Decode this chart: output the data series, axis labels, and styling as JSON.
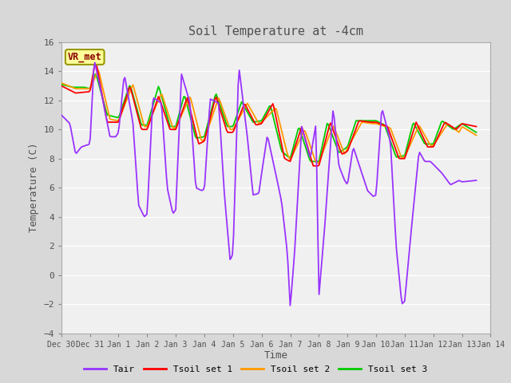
{
  "title": "Soil Temperature at -4cm",
  "xlabel": "Time",
  "ylabel": "Temperature (C)",
  "ylim": [
    -4,
    16
  ],
  "yticks": [
    -4,
    -2,
    0,
    2,
    4,
    6,
    8,
    10,
    12,
    14,
    16
  ],
  "xtick_labels": [
    "Dec 30",
    "Dec 31",
    "Jan 1",
    "Jan 2",
    "Jan 3",
    "Jan 4",
    "Jan 5",
    "Jan 6",
    "Jan 7",
    "Jan 8",
    "Jan 9",
    "Jan 10",
    "Jan 11",
    "Jan 12",
    "Jan 13",
    "Jan 14"
  ],
  "annotation_label": "VR_met",
  "annotation_color": "#8B0000",
  "annotation_bg": "#FFFF99",
  "annotation_border": "#999900",
  "line_colors": {
    "Tair": "#9933FF",
    "Tsoil set 1": "#FF0000",
    "Tsoil set 2": "#FF9900",
    "Tsoil set 3": "#00CC00"
  },
  "outer_bg": "#D8D8D8",
  "plot_bg": "#F0F0F0",
  "grid_color": "#FFFFFF",
  "title_color": "#505050",
  "axis_label_color": "#505050",
  "tick_label_color": "#505050",
  "tair_x": [
    0.0,
    0.3,
    0.5,
    0.7,
    1.0,
    1.15,
    1.4,
    1.7,
    1.9,
    2.0,
    2.2,
    2.5,
    2.7,
    2.9,
    3.0,
    3.2,
    3.5,
    3.7,
    3.9,
    4.0,
    4.2,
    4.5,
    4.7,
    4.9,
    5.0,
    5.2,
    5.5,
    5.7,
    5.9,
    6.0,
    6.2,
    6.5,
    6.7,
    6.9,
    7.0,
    7.2,
    7.5,
    7.7,
    7.9,
    8.0,
    8.15,
    8.4,
    8.7,
    8.9,
    9.0,
    9.2,
    9.5,
    9.7,
    9.9,
    10.0,
    10.2,
    10.5,
    10.7,
    10.9,
    11.0,
    11.2,
    11.5,
    11.7,
    11.9,
    12.0,
    12.2,
    12.5,
    12.7,
    12.9,
    13.0,
    13.3,
    13.6,
    13.9,
    14.0,
    14.5
  ],
  "tair_y": [
    11.0,
    10.4,
    8.3,
    8.8,
    9.0,
    14.8,
    12.5,
    9.5,
    9.5,
    9.8,
    13.8,
    10.5,
    4.8,
    4.0,
    4.2,
    12.2,
    11.8,
    6.0,
    4.2,
    4.5,
    13.8,
    11.8,
    6.0,
    5.8,
    5.9,
    12.1,
    11.8,
    5.5,
    1.0,
    1.5,
    14.4,
    9.5,
    5.5,
    5.6,
    7.0,
    9.6,
    6.9,
    5.0,
    1.5,
    -2.2,
    1.5,
    10.2,
    8.0,
    10.4,
    -1.5,
    3.2,
    11.5,
    7.5,
    6.5,
    6.2,
    8.8,
    7.0,
    5.8,
    5.4,
    5.5,
    11.5,
    9.2,
    2.0,
    -2.0,
    -1.8,
    2.5,
    8.5,
    7.8,
    7.8,
    7.6,
    7.0,
    6.2,
    6.5,
    6.4,
    6.5
  ],
  "tsoil1_x": [
    0.0,
    0.5,
    1.0,
    1.2,
    1.6,
    2.0,
    2.4,
    2.8,
    3.0,
    3.4,
    3.8,
    4.0,
    4.4,
    4.8,
    5.0,
    5.4,
    5.8,
    6.0,
    6.4,
    6.8,
    7.0,
    7.4,
    7.8,
    8.0,
    8.4,
    8.8,
    9.0,
    9.4,
    9.8,
    10.0,
    10.4,
    10.8,
    11.0,
    11.4,
    11.8,
    12.0,
    12.4,
    12.8,
    13.0,
    13.4,
    13.8,
    14.0,
    14.5
  ],
  "tsoil1_y": [
    13.0,
    12.5,
    12.6,
    14.8,
    10.5,
    10.5,
    13.0,
    10.0,
    10.0,
    12.3,
    10.0,
    10.0,
    12.2,
    9.0,
    9.2,
    12.3,
    9.8,
    9.8,
    11.8,
    10.3,
    10.4,
    11.8,
    8.0,
    7.8,
    10.2,
    7.5,
    7.5,
    10.5,
    8.3,
    8.5,
    10.6,
    10.5,
    10.5,
    10.2,
    8.0,
    8.0,
    10.5,
    8.8,
    8.8,
    10.5,
    10.0,
    10.4,
    10.2
  ],
  "tsoil2_x": [
    0.0,
    0.5,
    1.0,
    1.3,
    1.7,
    2.0,
    2.5,
    2.9,
    3.0,
    3.5,
    3.9,
    4.0,
    4.5,
    4.9,
    5.0,
    5.5,
    5.9,
    6.0,
    6.5,
    6.9,
    7.0,
    7.5,
    7.9,
    8.0,
    8.5,
    8.9,
    9.0,
    9.5,
    9.9,
    10.0,
    10.5,
    10.9,
    11.0,
    11.5,
    11.9,
    12.0,
    12.5,
    12.9,
    13.0,
    13.5,
    13.9,
    14.0,
    14.5
  ],
  "tsoil2_y": [
    13.2,
    12.8,
    12.8,
    14.1,
    10.7,
    10.6,
    13.1,
    10.2,
    10.2,
    12.5,
    10.1,
    10.1,
    12.3,
    9.2,
    9.3,
    12.2,
    10.0,
    10.0,
    11.8,
    10.4,
    10.5,
    11.5,
    8.3,
    7.9,
    10.0,
    7.7,
    7.7,
    10.3,
    8.3,
    8.7,
    10.5,
    10.4,
    10.4,
    10.1,
    8.0,
    8.1,
    10.3,
    8.9,
    8.9,
    10.4,
    9.8,
    10.2,
    9.6
  ],
  "tsoil3_x": [
    0.0,
    0.4,
    0.8,
    1.0,
    1.2,
    1.6,
    2.0,
    2.4,
    2.8,
    3.0,
    3.4,
    3.8,
    4.0,
    4.3,
    4.7,
    5.0,
    5.4,
    5.8,
    6.0,
    6.3,
    6.7,
    7.0,
    7.3,
    7.7,
    8.0,
    8.3,
    8.7,
    9.0,
    9.3,
    9.7,
    10.0,
    10.3,
    10.7,
    11.0,
    11.3,
    11.7,
    12.0,
    12.3,
    12.7,
    13.0,
    13.3,
    13.7,
    14.0,
    14.5
  ],
  "tsoil3_y": [
    13.1,
    12.9,
    12.9,
    12.8,
    13.9,
    11.0,
    10.8,
    13.1,
    10.3,
    10.3,
    13.0,
    10.2,
    10.2,
    12.4,
    9.4,
    9.5,
    12.5,
    10.2,
    10.2,
    11.9,
    10.5,
    10.6,
    11.7,
    8.5,
    8.0,
    10.2,
    7.8,
    7.8,
    10.5,
    8.4,
    8.8,
    10.6,
    10.6,
    10.6,
    10.3,
    8.1,
    8.2,
    10.5,
    9.0,
    9.0,
    10.6,
    10.0,
    10.4,
    9.8
  ]
}
